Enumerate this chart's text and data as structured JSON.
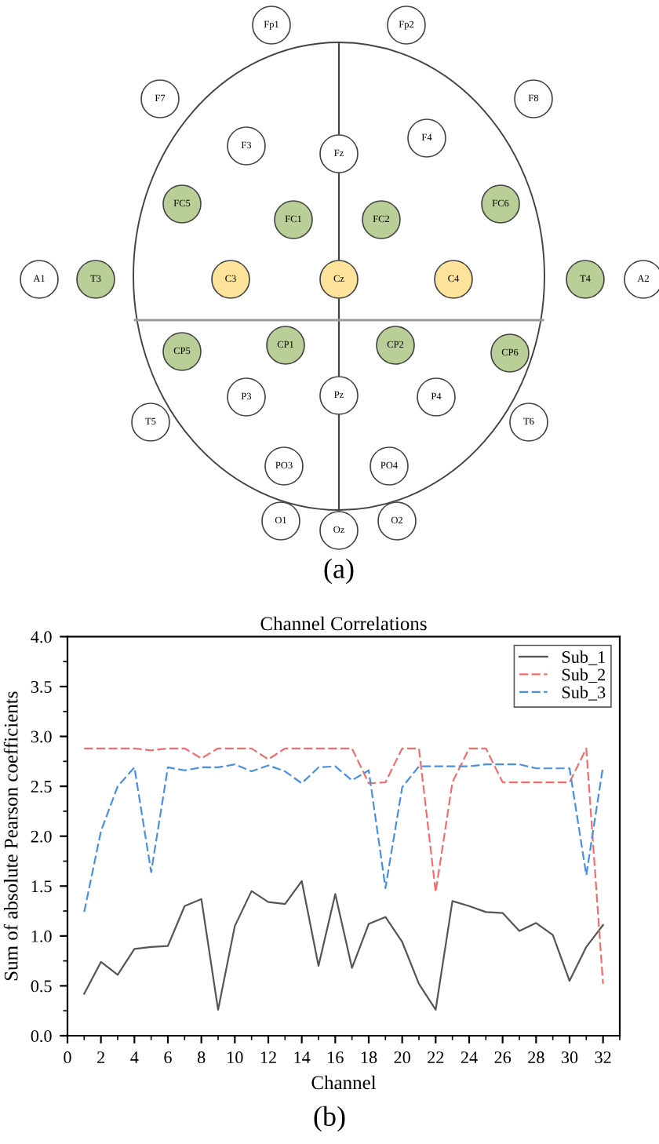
{
  "chart_data": [
    {
      "type": "other",
      "categories": [
        "Fp1",
        "Fp2",
        "F7",
        "F3",
        "Fz",
        "F4",
        "F8",
        "FC5",
        "FC1",
        "FC2",
        "FC6",
        "A1",
        "T3",
        "C3",
        "Cz",
        "C4",
        "T4",
        "A2",
        "CP5",
        "CP1",
        "CP2",
        "CP6",
        "P3",
        "Pz",
        "P4",
        "T5",
        "T6",
        "PO3",
        "PO4",
        "O1",
        "Oz",
        "O2"
      ],
      "colors": [
        "#ffffff",
        "#ffffff",
        "#ffffff",
        "#ffffff",
        "#ffffff",
        "#ffffff",
        "#ffffff",
        "#b9cf97",
        "#b9cf97",
        "#b9cf97",
        "#b9cf97",
        "#ffffff",
        "#b9cf97",
        "#fde49a",
        "#fde49a",
        "#fde49a",
        "#b9cf97",
        "#ffffff",
        "#b9cf97",
        "#b9cf97",
        "#b9cf97",
        "#b9cf97",
        "#ffffff",
        "#ffffff",
        "#ffffff",
        "#ffffff",
        "#ffffff",
        "#ffffff",
        "#ffffff",
        "#ffffff",
        "#ffffff",
        "#ffffff"
      ],
      "annotations": [
        "(a)"
      ]
    },
    {
      "type": "line",
      "title": "Channel Correlations",
      "xlabel": "Channel",
      "ylabel": "Sum of absolute Pearson coefficients",
      "x": [
        1,
        2,
        3,
        4,
        5,
        6,
        7,
        8,
        9,
        10,
        11,
        12,
        13,
        14,
        15,
        16,
        17,
        18,
        19,
        20,
        21,
        22,
        23,
        24,
        25,
        26,
        27,
        28,
        29,
        30,
        31,
        32
      ],
      "series": [
        {
          "name": "Sub_1",
          "color": "#555555",
          "line_style": "solid",
          "values": [
            0.42,
            0.74,
            0.61,
            0.87,
            0.89,
            0.9,
            1.3,
            1.37,
            0.26,
            1.1,
            1.45,
            1.34,
            1.32,
            1.55,
            0.7,
            1.42,
            0.68,
            1.12,
            1.19,
            0.94,
            0.52,
            0.26,
            1.35,
            1.3,
            1.24,
            1.23,
            1.05,
            1.13,
            1.01,
            0.55,
            0.89,
            1.11
          ]
        },
        {
          "name": "Sub_2",
          "color": "#f26d6d",
          "line_style": "dashed",
          "values": [
            2.88,
            2.88,
            2.88,
            2.88,
            2.86,
            2.88,
            2.88,
            2.78,
            2.88,
            2.88,
            2.88,
            2.77,
            2.88,
            2.88,
            2.88,
            2.88,
            2.88,
            2.53,
            2.54,
            2.88,
            2.88,
            1.44,
            2.54,
            2.88,
            2.88,
            2.54,
            2.54,
            2.54,
            2.54,
            2.54,
            2.88,
            0.52
          ]
        },
        {
          "name": "Sub_3",
          "color": "#4a90e2",
          "line_style": "dashed",
          "values": [
            1.24,
            2.05,
            2.5,
            2.69,
            1.64,
            2.69,
            2.66,
            2.69,
            2.69,
            2.72,
            2.65,
            2.71,
            2.65,
            2.53,
            2.69,
            2.7,
            2.56,
            2.66,
            1.48,
            2.49,
            2.7,
            2.7,
            2.7,
            2.7,
            2.72,
            2.72,
            2.72,
            2.68,
            2.68,
            2.68,
            1.61,
            2.7
          ]
        }
      ],
      "xlim": [
        0,
        33
      ],
      "ylim": [
        0,
        4.0
      ],
      "xticks": [
        0,
        2,
        4,
        6,
        8,
        10,
        12,
        14,
        16,
        18,
        20,
        22,
        24,
        26,
        28,
        30,
        32
      ],
      "yticks": [
        {
          "value": 0,
          "label": "0.0"
        },
        {
          "value": 0.5,
          "label": "0.5"
        },
        {
          "value": 1,
          "label": "1.0"
        },
        {
          "value": 1.5,
          "label": "1.5"
        },
        {
          "value": 2,
          "label": "2.0"
        },
        {
          "value": 2.5,
          "label": "2.5"
        },
        {
          "value": 3,
          "label": "3.0"
        },
        {
          "value": 3.5,
          "label": "3.5"
        },
        {
          "value": 4,
          "label": "4.0"
        }
      ],
      "legend": "top right",
      "grid": false,
      "annotations": [
        "(b)"
      ]
    }
  ]
}
